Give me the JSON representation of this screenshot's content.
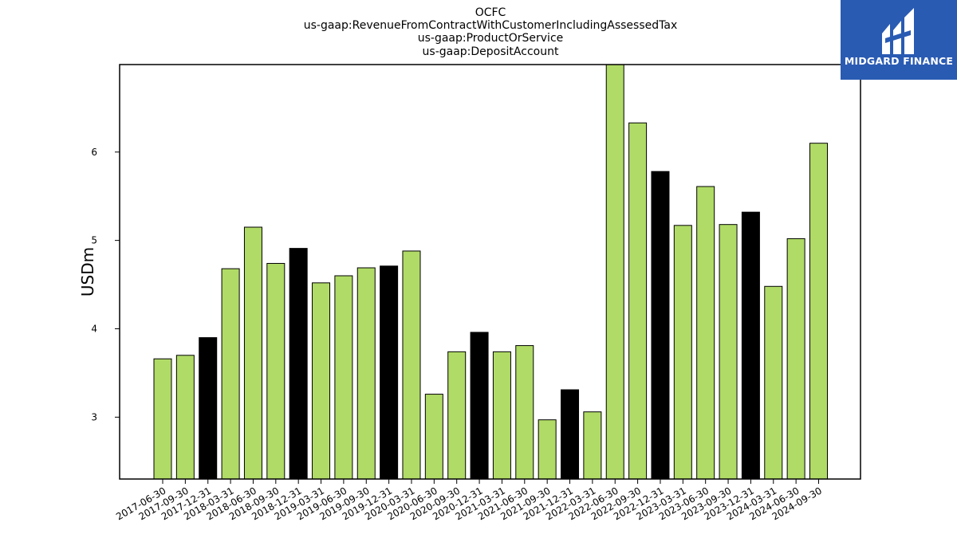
{
  "chart_data": {
    "type": "bar",
    "title_lines": [
      "OCFC",
      "us-gaap:RevenueFromContractWithCustomerIncludingAssessedTax",
      "us-gaap:ProductOrService",
      "us-gaap:DepositAccount"
    ],
    "ylabel": "USDm",
    "xlabel": "",
    "ylim": [
      2.3,
      6.99
    ],
    "yticks": [
      3,
      4,
      5,
      6
    ],
    "grid": false,
    "categories": [
      "2017-06-30",
      "2017-09-30",
      "2017-12-31",
      "2018-03-31",
      "2018-06-30",
      "2018-09-30",
      "2018-12-31",
      "2019-03-31",
      "2019-06-30",
      "2019-09-30",
      "2019-12-31",
      "2020-03-31",
      "2020-06-30",
      "2020-09-30",
      "2020-12-31",
      "2021-03-31",
      "2021-06-30",
      "2021-09-30",
      "2021-12-31",
      "2022-03-31",
      "2022-06-30",
      "2022-09-30",
      "2022-12-31",
      "2023-03-31",
      "2023-06-30",
      "2023-09-30",
      "2023-12-31",
      "2024-03-31",
      "2024-06-30",
      "2024-09-30"
    ],
    "values": [
      3.66,
      3.7,
      3.9,
      4.68,
      5.15,
      4.74,
      4.91,
      4.52,
      4.6,
      4.69,
      4.71,
      4.88,
      3.26,
      3.74,
      3.96,
      3.74,
      3.81,
      2.97,
      3.31,
      3.06,
      7.0,
      6.33,
      5.78,
      5.17,
      5.61,
      5.18,
      5.32,
      4.48,
      5.02,
      6.1
    ],
    "bar_colors": {
      "regular": "#b0db66",
      "year_end": "#000000"
    }
  },
  "logo": {
    "text": "MIDGARD FINANCE",
    "background": "#2a5bb3"
  }
}
